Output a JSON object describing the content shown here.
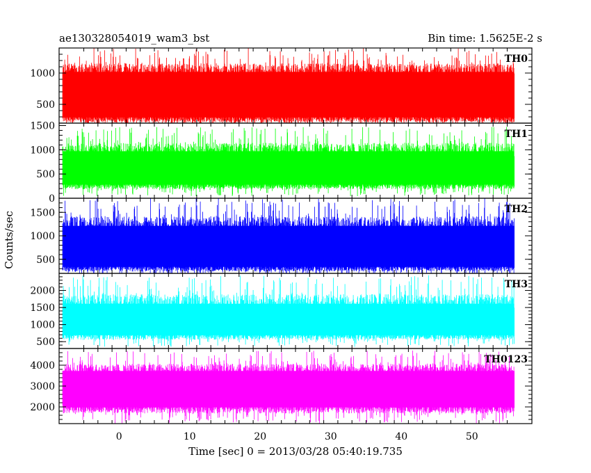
{
  "chart_data": {
    "type": "line",
    "title_left": "ae130328054019_wam3_bst",
    "title_right": "Bin time: 1.5625E-2 s",
    "xlabel": "Time [sec] 0 = 2013/03/28 05:40:19.735",
    "ylabel": "Counts/sec",
    "xlim": [
      -8.5,
      58.5
    ],
    "x_data_range": [
      -8,
      56
    ],
    "x_ticks": [
      0,
      10,
      20,
      30,
      40,
      50
    ],
    "grid": false,
    "panels": [
      {
        "name": "TH0",
        "color": "#ff0000",
        "ylim": [
          200,
          1400
        ],
        "y_ticks": [
          500,
          1000
        ],
        "y_tick_labels": [
          "500",
          "1000"
        ],
        "base_low": 260,
        "base_high": 1050,
        "spike_low": 100,
        "spike_high": 1400
      },
      {
        "name": "TH1",
        "color": "#00ff00",
        "ylim": [
          0,
          1550
        ],
        "y_ticks": [
          0,
          500,
          1000,
          1500
        ],
        "y_tick_labels": [
          "0",
          "500",
          "1000",
          "1500"
        ],
        "base_low": 250,
        "base_high": 1000,
        "spike_low": 40,
        "spike_high": 1480
      },
      {
        "name": "TH2",
        "color": "#0000ff",
        "ylim": [
          200,
          1800
        ],
        "y_ticks": [
          500,
          1000,
          1500
        ],
        "y_tick_labels": [
          "500",
          "1000",
          "1500"
        ],
        "base_low": 300,
        "base_high": 1250,
        "spike_low": 100,
        "spike_high": 1800
      },
      {
        "name": "TH3",
        "color": "#00ffff",
        "ylim": [
          300,
          2500
        ],
        "y_ticks": [
          500,
          1000,
          1500,
          2000
        ],
        "y_tick_labels": [
          "500",
          "1000",
          "1500",
          "2000"
        ],
        "base_low": 650,
        "base_high": 1650,
        "spike_low": 350,
        "spike_high": 2450
      },
      {
        "name": "TH0123",
        "color": "#ff00ff",
        "ylim": [
          1200,
          4800
        ],
        "y_ticks": [
          2000,
          3000,
          4000
        ],
        "y_tick_labels": [
          "2000",
          "3000",
          "4000"
        ],
        "base_low": 1900,
        "base_high": 3800,
        "spike_low": 1200,
        "spike_high": 4700
      }
    ]
  }
}
